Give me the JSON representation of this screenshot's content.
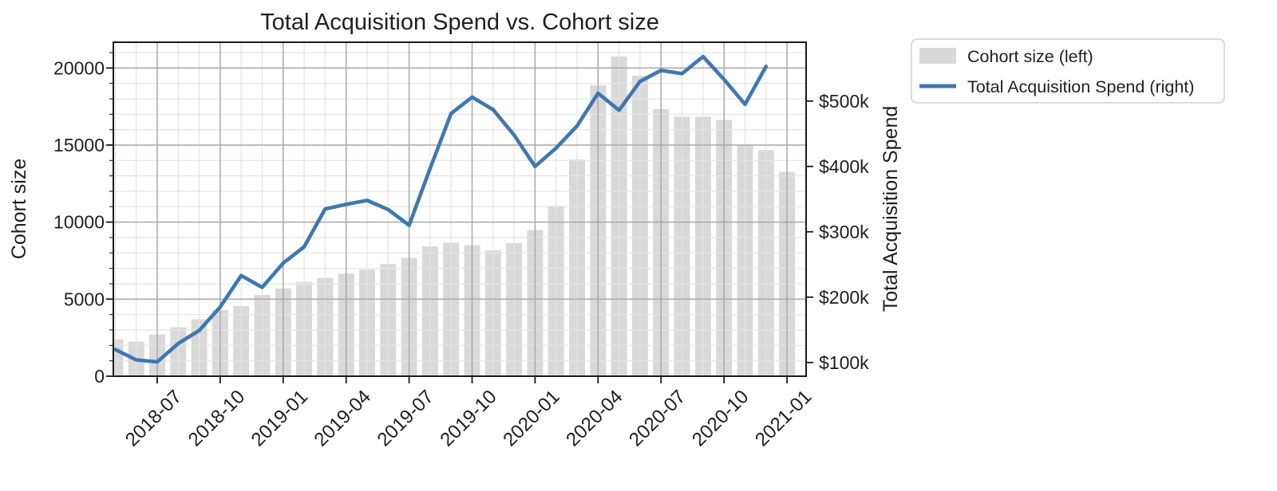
{
  "title": "Total Acquisition Spend vs. Cohort size",
  "legend": {
    "position": "outside-upper-right",
    "items": [
      {
        "label": "Cohort size (left)",
        "type": "patch",
        "color": "#d9d9d9"
      },
      {
        "label": "Total Acquisition Spend (right)",
        "type": "line",
        "color": "#3d78b2"
      }
    ]
  },
  "style": {
    "bar_color": "#d9d9d9",
    "line_color": "#3d78b2",
    "grid_minor_color": "#e5e5e5",
    "grid_major_color": "#a9a9a9",
    "spine_color": "#1a1a1a",
    "background": "#ffffff"
  },
  "chart_data": {
    "type": "bar+line",
    "x": [
      "2018-05",
      "2018-06",
      "2018-07",
      "2018-08",
      "2018-09",
      "2018-10",
      "2018-11",
      "2018-12",
      "2019-01",
      "2019-02",
      "2019-03",
      "2019-04",
      "2019-05",
      "2019-06",
      "2019-07",
      "2019-08",
      "2019-09",
      "2019-10",
      "2019-11",
      "2019-12",
      "2020-01",
      "2020-02",
      "2020-03",
      "2020-04",
      "2020-05",
      "2020-06",
      "2020-07",
      "2020-08",
      "2020-09",
      "2020-10",
      "2020-11",
      "2020-12",
      "2021-01"
    ],
    "x_major_ticks": {
      "indices": [
        2,
        5,
        8,
        11,
        14,
        17,
        20,
        23,
        26,
        29,
        32
      ],
      "labels": [
        "2018-07",
        "2018-10",
        "2019-01",
        "2019-04",
        "2019-07",
        "2019-10",
        "2020-01",
        "2020-04",
        "2020-07",
        "2020-10",
        "2021-01"
      ]
    },
    "series": [
      {
        "name": "Cohort size (left)",
        "type": "bar",
        "axis": "left",
        "values": [
          2400,
          2250,
          2700,
          3180,
          3700,
          4280,
          4550,
          5280,
          5700,
          6120,
          6380,
          6650,
          6930,
          7280,
          7670,
          8430,
          8670,
          8500,
          8170,
          8630,
          9490,
          11050,
          14060,
          18880,
          20750,
          19490,
          17330,
          16840,
          16840,
          16630,
          15000,
          14680,
          13260
        ]
      },
      {
        "name": "Total Acquisition Spend (right)",
        "type": "line",
        "axis": "right",
        "unit": "thousand USD",
        "values": [
          120,
          104,
          101,
          129,
          149,
          185,
          233,
          215,
          252,
          277,
          335,
          342,
          348,
          334,
          310,
          397,
          481,
          506,
          487,
          448,
          400,
          428,
          462,
          512,
          486,
          530,
          547,
          542,
          568,
          533,
          495,
          553,
          null
        ]
      }
    ],
    "left_axis": {
      "label": "Cohort size",
      "ticks": [
        0,
        5000,
        10000,
        15000,
        20000
      ],
      "tick_labels": [
        "0",
        "5000",
        "10000",
        "15000",
        "20000"
      ],
      "minor_step": 1000,
      "ylim": [
        0,
        21670
      ]
    },
    "right_axis": {
      "label": "Total Acquisition Spend",
      "ticks": [
        100,
        200,
        300,
        400,
        500
      ],
      "tick_labels": [
        "$100k",
        "$200k",
        "$300k",
        "$400k",
        "$500k"
      ],
      "ylim": [
        79,
        590
      ]
    },
    "xlim_months": [
      -0.09,
      32.91
    ],
    "grid": {
      "minor": true,
      "major": true,
      "axisbelow": false
    }
  }
}
